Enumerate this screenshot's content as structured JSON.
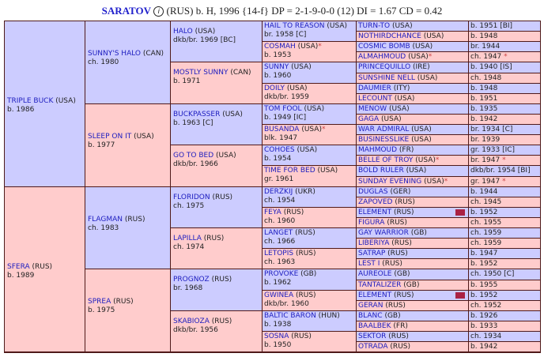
{
  "header": {
    "name": "SARATOV",
    "info_icon": "i",
    "details": "(RUS) b. H, 1996 {14-f} DP = 2-1-9-0-0 (12) DI = 1.67   CD = 0.42"
  },
  "colors": {
    "male": "#ccccff",
    "female": "#ffcccc",
    "grid": "#4f1a1a",
    "link": "#2020c0",
    "duplicate_marker": "#aa2244"
  },
  "pedigree": {
    "g1": [
      {
        "name": "TRIPLE BUCK",
        "origin": "(USA)",
        "info": "b. 1986"
      },
      {
        "name": "SFERA",
        "origin": "(RUS)",
        "info": "b. 1989"
      }
    ],
    "g2": [
      {
        "name": "SUNNY'S HALO",
        "origin": "(CAN)",
        "info": "ch. 1980"
      },
      {
        "name": "SLEEP ON IT",
        "origin": "(USA)",
        "info": "b. 1977"
      },
      {
        "name": "FLAGMAN",
        "origin": "(RUS)",
        "info": "ch. 1983"
      },
      {
        "name": "SPREA",
        "origin": "(RUS)",
        "info": "b. 1975"
      }
    ],
    "g3": [
      {
        "name": "HALO",
        "origin": "(USA)",
        "info": "dkb/br. 1969 [BC]"
      },
      {
        "name": "MOSTLY SUNNY",
        "origin": "(CAN)",
        "info": "b. 1971"
      },
      {
        "name": "BUCKPASSER",
        "origin": "(USA)",
        "info": "b. 1963 [C]"
      },
      {
        "name": "GO TO BED",
        "origin": "(USA)",
        "info": "dkb/br. 1966"
      },
      {
        "name": "FLORIDON",
        "origin": "(RUS)",
        "info": "ch. 1975"
      },
      {
        "name": "LAPILLA",
        "origin": "(RUS)",
        "info": "ch. 1974"
      },
      {
        "name": "PROGNOZ",
        "origin": "(RUS)",
        "info": "br. 1968"
      },
      {
        "name": "SKABIOZA",
        "origin": "(RUS)",
        "info": "dkb/br. 1956"
      }
    ],
    "g4": [
      {
        "name": "HAIL TO REASON",
        "origin": "(USA)",
        "info": "br. 1958 [C]",
        "star": ""
      },
      {
        "name": "COSMAH",
        "origin": "(USA)",
        "info": "b. 1953",
        "star": "*"
      },
      {
        "name": "SUNNY",
        "origin": "(USA)",
        "info": "b. 1960",
        "star": ""
      },
      {
        "name": "DOILY",
        "origin": "(USA)",
        "info": "dkb/br. 1959",
        "star": ""
      },
      {
        "name": "TOM FOOL",
        "origin": "(USA)",
        "info": "b. 1949 [IC]",
        "star": ""
      },
      {
        "name": "BUSANDA",
        "origin": "(USA)",
        "info": "blk. 1947",
        "star": "*"
      },
      {
        "name": "COHOES",
        "origin": "(USA)",
        "info": "b. 1954",
        "star": ""
      },
      {
        "name": "TIME FOR BED",
        "origin": "(USA)",
        "info": "gr. 1961",
        "star": ""
      },
      {
        "name": "DERZKIJ",
        "origin": "(UKR)",
        "info": "ch. 1954",
        "star": ""
      },
      {
        "name": "FEYA",
        "origin": "(RUS)",
        "info": "ch. 1960",
        "star": ""
      },
      {
        "name": "LANGET",
        "origin": "(RUS)",
        "info": "ch. 1966",
        "star": ""
      },
      {
        "name": "LETOPIS",
        "origin": "(RUS)",
        "info": "ch. 1963",
        "star": ""
      },
      {
        "name": "PROVOKE",
        "origin": "(GB)",
        "info": "b. 1962",
        "star": ""
      },
      {
        "name": "GWINEA",
        "origin": "(RUS)",
        "info": "dkb/br. 1960",
        "star": ""
      },
      {
        "name": "BALTIC BARON",
        "origin": "(HUN)",
        "info": "b. 1938",
        "star": ""
      },
      {
        "name": "SOSNA",
        "origin": "(RUS)",
        "info": "b. 1950",
        "star": ""
      }
    ],
    "g5": [
      {
        "name": "TURN-TO",
        "origin": "(USA)",
        "info": "b. 1951 [BI]",
        "star": ""
      },
      {
        "name": "NOTHIRDCHANCE",
        "origin": "(USA)",
        "info": "b. 1948",
        "star": ""
      },
      {
        "name": "COSMIC BOMB",
        "origin": "(USA)",
        "info": "br. 1944",
        "star": ""
      },
      {
        "name": "ALMAHMOUD",
        "origin": "(USA)",
        "info": "ch. 1947",
        "star": "*"
      },
      {
        "name": "PRINCEQUILLO",
        "origin": "(IRE)",
        "info": "b. 1940 [IS]",
        "star": ""
      },
      {
        "name": "SUNSHINE NELL",
        "origin": "(USA)",
        "info": "ch. 1948",
        "star": ""
      },
      {
        "name": "DAUMIER",
        "origin": "(ITY)",
        "info": "b. 1948",
        "star": ""
      },
      {
        "name": "LECOUNT",
        "origin": "(USA)",
        "info": "b. 1951",
        "star": ""
      },
      {
        "name": "MENOW",
        "origin": "(USA)",
        "info": "b. 1935",
        "star": ""
      },
      {
        "name": "GAGA",
        "origin": "(USA)",
        "info": "b. 1942",
        "star": ""
      },
      {
        "name": "WAR ADMIRAL",
        "origin": "(USA)",
        "info": "br. 1934 [C]",
        "star": ""
      },
      {
        "name": "BUSINESSLIKE",
        "origin": "(USA)",
        "info": "br. 1939",
        "star": ""
      },
      {
        "name": "MAHMOUD",
        "origin": "(FR)",
        "info": "gr. 1933 [IC]",
        "star": ""
      },
      {
        "name": "BELLE OF TROY",
        "origin": "(USA)",
        "info": "br. 1947",
        "star": "*"
      },
      {
        "name": "BOLD RULER",
        "origin": "(USA)",
        "info": "dkb/br. 1954 [BI]",
        "star": ""
      },
      {
        "name": "SUNDAY EVENING",
        "origin": "(USA)",
        "info": "gr. 1947",
        "star": "*"
      },
      {
        "name": "DUGLAS",
        "origin": "(GER)",
        "info": "b. 1944",
        "star": ""
      },
      {
        "name": "ZAPOVED",
        "origin": "(RUS)",
        "info": "ch. 1945",
        "star": ""
      },
      {
        "name": "ELEMENT",
        "origin": "(RUS)",
        "info": "b. 1952",
        "star": "",
        "dup": true
      },
      {
        "name": "FIGURA",
        "origin": "(RUS)",
        "info": "ch. 1955",
        "star": ""
      },
      {
        "name": "GAY WARRIOR",
        "origin": "(GB)",
        "info": "ch. 1959",
        "star": ""
      },
      {
        "name": "LIBERIYA",
        "origin": "(RUS)",
        "info": "ch. 1959",
        "star": ""
      },
      {
        "name": "SATRAP",
        "origin": "(RUS)",
        "info": "b. 1947",
        "star": ""
      },
      {
        "name": "LEST I",
        "origin": "(RUS)",
        "info": "b. 1952",
        "star": ""
      },
      {
        "name": "AUREOLE",
        "origin": "(GB)",
        "info": "ch. 1950 [C]",
        "star": ""
      },
      {
        "name": "TANTALIZER",
        "origin": "(GB)",
        "info": "b. 1955",
        "star": ""
      },
      {
        "name": "ELEMENT",
        "origin": "(RUS)",
        "info": "b. 1952",
        "star": "",
        "dup": true
      },
      {
        "name": "GERAN",
        "origin": "(RUS)",
        "info": "ch. 1952",
        "star": ""
      },
      {
        "name": "BLANC",
        "origin": "(GB)",
        "info": "b. 1926",
        "star": ""
      },
      {
        "name": "BAALBEK",
        "origin": "(FR)",
        "info": "b. 1933",
        "star": ""
      },
      {
        "name": "SEKTOR",
        "origin": "(RUS)",
        "info": "ch. 1934",
        "star": ""
      },
      {
        "name": "OTRADA",
        "origin": "(RUS)",
        "info": "b. 1942",
        "star": ""
      }
    ]
  }
}
